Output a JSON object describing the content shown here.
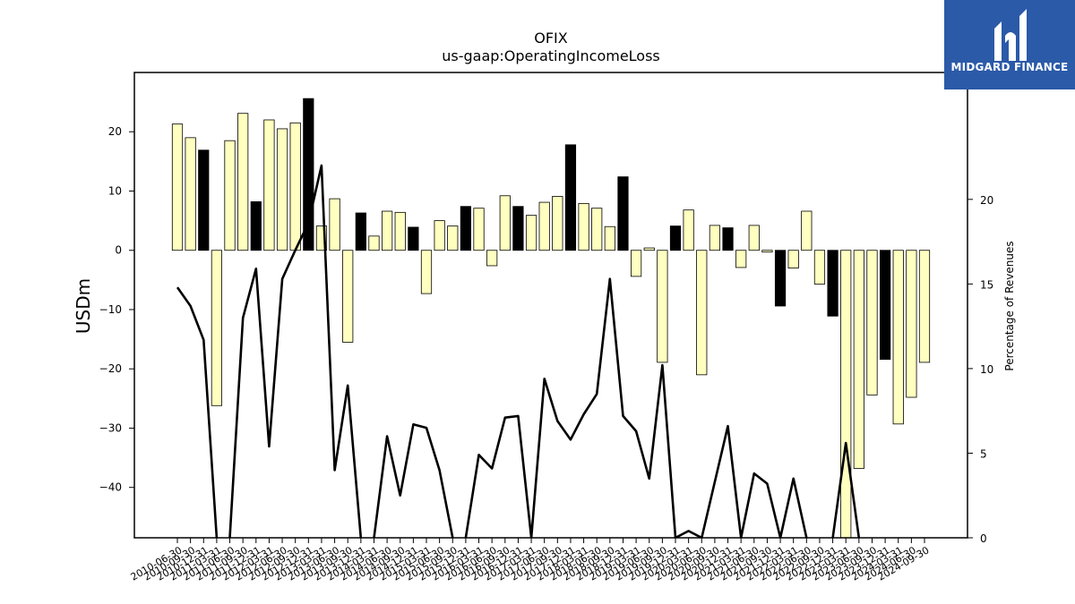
{
  "logo": {
    "text": "MIDGARD FINANCE",
    "icon": "midgard-logo-icon",
    "background": "#2b5aa8"
  },
  "chart_data": {
    "type": "bar",
    "title": "OFIX",
    "subtitle": "us-gaap:OperatingIncomeLoss",
    "ylabel": "USDm",
    "ylabel_right": "Percentage of Revenues",
    "ylim": [
      -48.5,
      30
    ],
    "ylim_right": [
      0,
      27.5
    ],
    "yticks": [
      -40,
      -30,
      -20,
      -10,
      0,
      10,
      20
    ],
    "yticks_right": [
      0,
      5,
      10,
      15,
      20
    ],
    "grid": false,
    "colors": {
      "quarter_bar": "#ffffc0",
      "annual_bar": "#000000",
      "line": "#000000"
    },
    "categories": [
      "2010-06-30",
      "2010-09-30",
      "2010-12-31",
      "2011-03-31",
      "2011-06-30",
      "2011-09-30",
      "2011-12-31",
      "2012-03-31",
      "2012-06-30",
      "2012-09-30",
      "2012-12-31",
      "2013-03-31",
      "2013-06-30",
      "2013-09-30",
      "2013-12-31",
      "2014-03-31",
      "2014-06-30",
      "2014-09-30",
      "2014-12-31",
      "2015-03-31",
      "2015-06-30",
      "2015-09-30",
      "2015-12-31",
      "2016-03-31",
      "2016-06-30",
      "2016-09-30",
      "2016-12-31",
      "2017-03-31",
      "2017-06-30",
      "2017-09-30",
      "2017-12-31",
      "2018-03-31",
      "2018-06-30",
      "2018-09-30",
      "2018-12-31",
      "2019-03-31",
      "2019-06-30",
      "2019-09-30",
      "2019-12-31",
      "2020-03-31",
      "2020-06-30",
      "2020-09-30",
      "2020-12-31",
      "2021-03-31",
      "2021-06-30",
      "2021-09-30",
      "2021-12-31",
      "2022-03-31",
      "2022-06-30",
      "2022-09-30",
      "2022-12-31",
      "2023-03-31",
      "2023-06-30",
      "2023-09-30",
      "2023-12-31",
      "2024-03-31",
      "2024-06-30",
      "2024-09-30"
    ],
    "series": [
      {
        "type": "bar",
        "values": [
          21.3,
          19.0,
          16.9,
          -26.2,
          18.5,
          23.1,
          8.2,
          22.0,
          20.5,
          21.5,
          25.6,
          4.1,
          8.7,
          -15.5,
          6.3,
          2.4,
          6.6,
          6.4,
          3.9,
          -7.3,
          5.0,
          4.1,
          7.4,
          7.1,
          -2.6,
          9.2,
          7.4,
          5.9,
          8.1,
          9.1,
          17.8,
          7.9,
          7.1,
          4.0,
          12.4,
          -4.4,
          0.4,
          -18.9,
          4.1,
          6.8,
          -21.0,
          4.2,
          3.8,
          -2.9,
          4.2,
          -0.3,
          -9.4,
          -3.0,
          6.6,
          -5.7,
          -11.1,
          -48.5,
          -36.8,
          -24.4,
          -18.4,
          -29.3,
          -24.8,
          -18.9
        ],
        "is_annual": [
          false,
          false,
          true,
          false,
          false,
          false,
          true,
          false,
          false,
          false,
          true,
          false,
          false,
          false,
          true,
          false,
          false,
          false,
          true,
          false,
          false,
          false,
          true,
          false,
          false,
          false,
          true,
          false,
          false,
          false,
          true,
          false,
          false,
          false,
          true,
          false,
          false,
          false,
          true,
          false,
          false,
          false,
          true,
          false,
          false,
          false,
          true,
          false,
          false,
          false,
          true,
          false,
          false,
          false,
          true,
          false,
          false,
          false
        ]
      },
      {
        "type": "line",
        "axis": "right",
        "values": [
          14.8,
          13.7,
          11.7,
          null,
          null,
          13.0,
          15.9,
          5.4,
          15.3,
          17.0,
          18.6,
          22.0,
          4.0,
          9.0,
          null,
          null,
          6.0,
          2.5,
          6.7,
          6.5,
          4.0,
          null,
          null,
          4.9,
          4.1,
          7.1,
          7.2,
          null,
          9.4,
          6.9,
          5.8,
          7.3,
          8.5,
          15.3,
          7.2,
          6.3,
          3.5,
          10.2,
          null,
          0.4,
          null,
          3.3,
          6.6,
          null,
          3.8,
          3.2,
          null,
          3.5,
          null,
          null,
          null,
          5.6,
          null,
          null,
          null,
          null,
          null,
          null
        ]
      }
    ]
  }
}
